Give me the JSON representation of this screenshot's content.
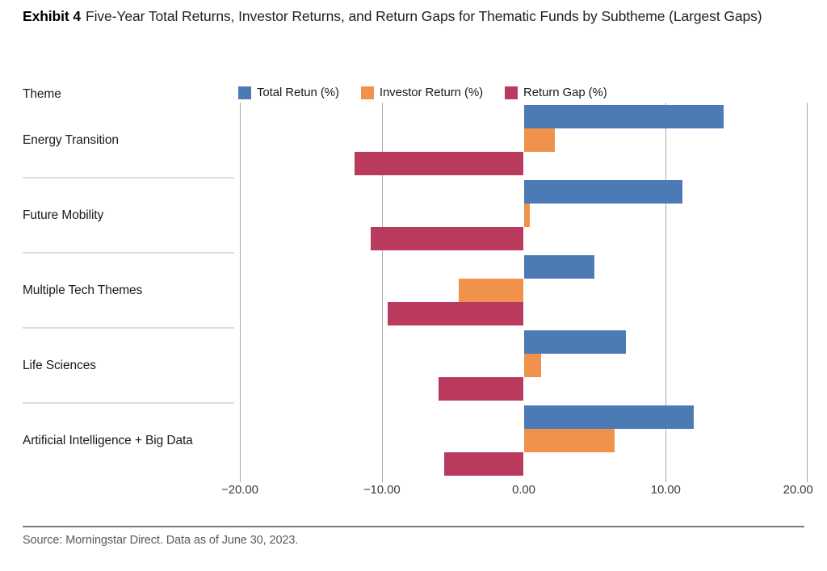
{
  "title": {
    "exhibit_label": "Exhibit 4",
    "text": "Five-Year Total Returns, Investor Returns, and Return Gaps for Thematic Funds by Subtheme (Largest Gaps)"
  },
  "theme_header": "Theme",
  "source_note": "Source: Morningstar Direct. Data as of June 30, 2023.",
  "colors": {
    "total_return": "#4C7AB5",
    "investor_return": "#F0914C",
    "return_gap": "#B93A5C",
    "gridline": "#AAAAAA",
    "separator": "#DEDEDE",
    "footer_rule": "#7C7C7C"
  },
  "chart_data": {
    "type": "bar",
    "orientation": "horizontal",
    "title": "Five-Year Total Returns, Investor Returns, and Return Gaps for Thematic Funds by Subtheme (Largest Gaps)",
    "categories": [
      "Energy Transition",
      "Future Mobility",
      "Multiple Tech Themes",
      "Life Sciences",
      "Artificial Intelligence + Big Data"
    ],
    "series": [
      {
        "name": "Total Retun (%)",
        "color_key": "total_return",
        "values": [
          14.1,
          11.2,
          5.0,
          7.2,
          12.0
        ]
      },
      {
        "name": "Investor Return (%)",
        "color_key": "investor_return",
        "values": [
          2.2,
          0.4,
          -4.6,
          1.2,
          6.4
        ]
      },
      {
        "name": "Return Gap (%)",
        "color_key": "return_gap",
        "values": [
          -11.9,
          -10.8,
          -9.6,
          -6.0,
          -5.6
        ]
      }
    ],
    "x_axis": {
      "min": -20,
      "max": 20,
      "tick_values": [
        -20,
        -10,
        0,
        10,
        20
      ],
      "tick_labels": [
        "−20.00",
        "−10.00",
        "0.00",
        "10.00",
        "20.00"
      ],
      "gridline_values": [
        -20,
        -10,
        10,
        20
      ]
    },
    "legend_position": "top",
    "grid": "vertical-only"
  }
}
